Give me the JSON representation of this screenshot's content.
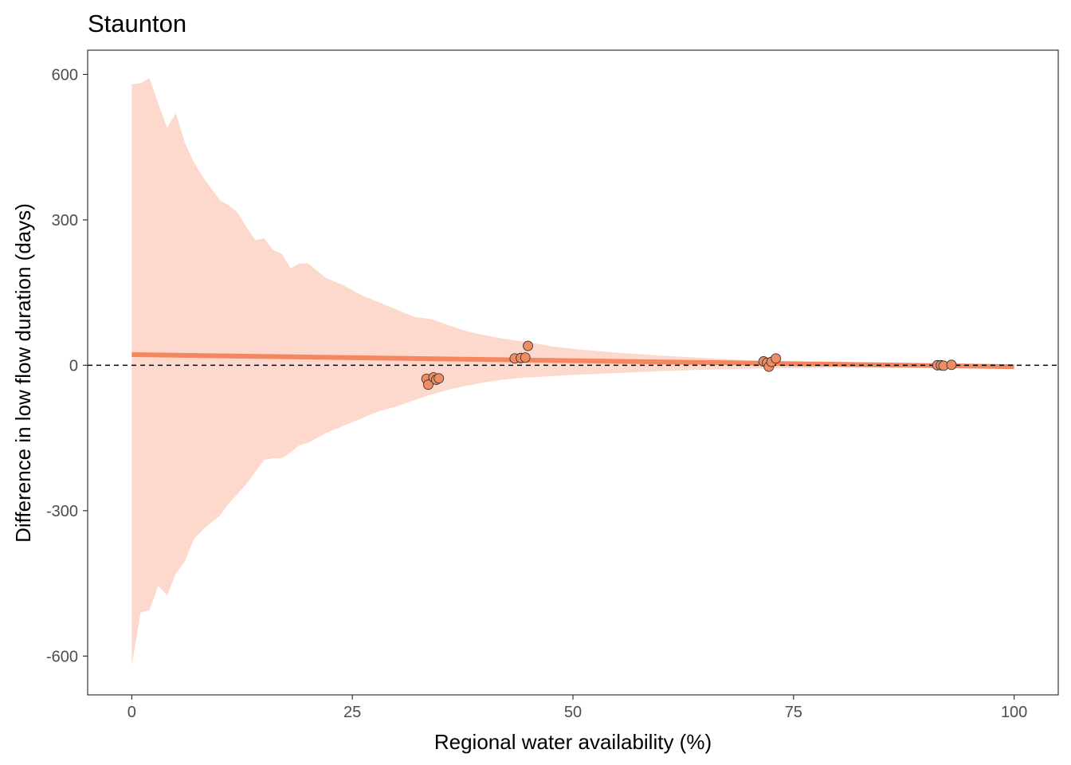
{
  "chart_data": {
    "type": "line",
    "title": "Staunton",
    "xlabel": "Regional water availability (%)",
    "ylabel": "Difference in low flow duration (days)",
    "xlim": [
      -5,
      105
    ],
    "ylim": [
      -680,
      650
    ],
    "x_ticks": [
      0,
      25,
      50,
      75,
      100
    ],
    "x_tick_labels": [
      "0",
      "25",
      "50",
      "75",
      "100"
    ],
    "y_ticks": [
      600,
      300,
      0,
      -300,
      -600
    ],
    "y_tick_labels": [
      "600",
      "300",
      "0",
      "-300",
      "-600"
    ],
    "reference_line": {
      "y": 0,
      "style": "dashed",
      "color": "#000000"
    },
    "colors": {
      "ribbon": "#fdd9cd",
      "trend": "#f4875f",
      "points": "#f08c64",
      "point_outline": "#333333"
    },
    "ribbon": {
      "x": [
        0,
        1,
        2,
        3,
        4,
        5,
        6,
        7,
        8,
        9,
        10,
        11,
        12,
        13,
        14,
        15,
        16,
        17,
        18,
        19,
        20,
        22,
        24,
        26,
        28,
        30,
        32,
        34,
        36,
        38,
        40,
        42,
        44,
        46,
        48,
        50,
        55,
        60,
        65,
        70,
        75,
        80,
        85,
        90,
        95,
        100
      ],
      "upper": [
        580,
        582,
        592,
        540,
        490,
        520,
        460,
        420,
        390,
        365,
        340,
        330,
        315,
        285,
        258,
        262,
        238,
        230,
        200,
        210,
        210,
        180,
        165,
        145,
        130,
        115,
        100,
        95,
        82,
        70,
        62,
        55,
        50,
        44,
        38,
        34,
        26,
        20,
        15,
        10,
        8,
        6,
        5,
        4,
        3,
        2
      ],
      "lower": [
        -620,
        -510,
        -505,
        -455,
        -475,
        -430,
        -405,
        -360,
        -340,
        -325,
        -310,
        -285,
        -265,
        -245,
        -220,
        -195,
        -192,
        -192,
        -180,
        -165,
        -160,
        -140,
        -125,
        -110,
        -95,
        -85,
        -72,
        -60,
        -50,
        -42,
        -35,
        -30,
        -26,
        -24,
        -22,
        -20,
        -16,
        -12,
        -9,
        -7,
        -6,
        -5,
        -4,
        -4,
        -4,
        -3
      ]
    },
    "trend": {
      "x": [
        0,
        100
      ],
      "y": [
        22,
        -3
      ]
    },
    "points": [
      {
        "x": 33.4,
        "y": -28
      },
      {
        "x": 33.6,
        "y": -40
      },
      {
        "x": 34.2,
        "y": -25
      },
      {
        "x": 34.5,
        "y": -30
      },
      {
        "x": 34.8,
        "y": -27
      },
      {
        "x": 43.4,
        "y": 14
      },
      {
        "x": 44.1,
        "y": 15
      },
      {
        "x": 44.6,
        "y": 16
      },
      {
        "x": 44.9,
        "y": 40
      },
      {
        "x": 71.6,
        "y": 8
      },
      {
        "x": 72.0,
        "y": 5
      },
      {
        "x": 72.2,
        "y": -3
      },
      {
        "x": 72.5,
        "y": 7
      },
      {
        "x": 73.0,
        "y": 14
      },
      {
        "x": 91.3,
        "y": 0
      },
      {
        "x": 91.7,
        "y": 0
      },
      {
        "x": 92.0,
        "y": -1
      },
      {
        "x": 92.9,
        "y": 1
      }
    ]
  }
}
